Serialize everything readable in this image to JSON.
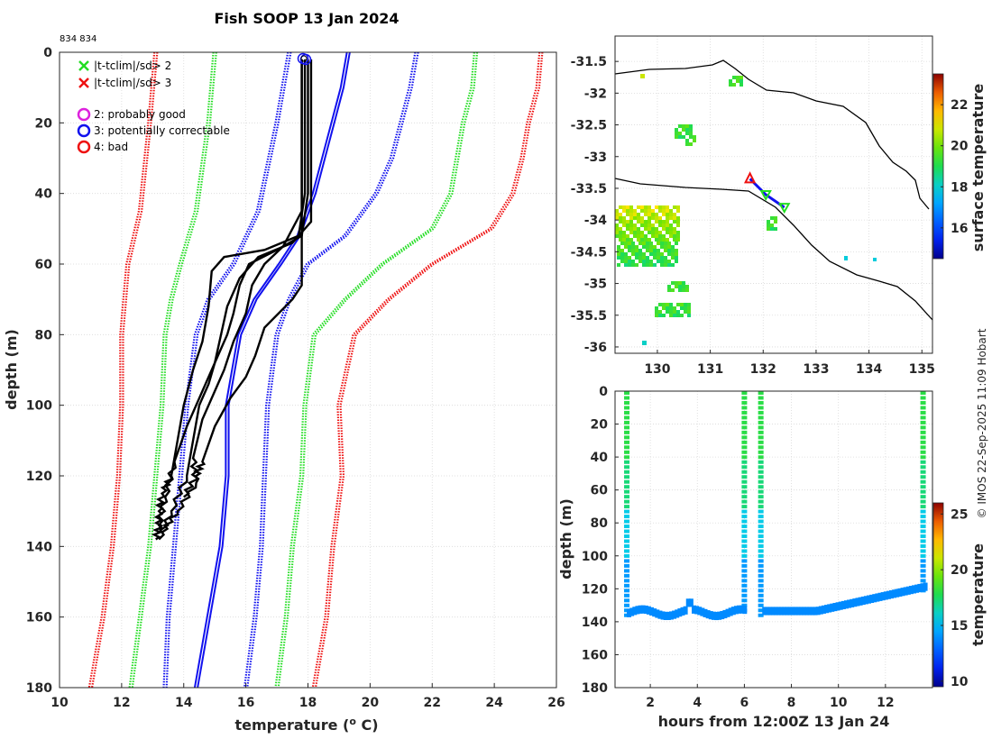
{
  "title": "Fish SOOP 13 Jan 2024",
  "sample_ids": "834 834",
  "credit": "© IMOS 22-Sep-2025 11:09 Hobart",
  "legend": {
    "items": [
      {
        "label": "|t-tclim|/sd> 2",
        "symbol": "x",
        "color": "#22dd22"
      },
      {
        "label": "|t-tclim|/sd> 3",
        "symbol": "x",
        "color": "#ee1111"
      },
      {
        "label": "2: probably good",
        "symbol": "o",
        "color": "#dd22dd"
      },
      {
        "label": "3: potentially correctable",
        "symbol": "o",
        "color": "#1111ee"
      },
      {
        "label": "4: bad",
        "symbol": "o",
        "color": "#ee1111"
      }
    ]
  },
  "chart_data": [
    {
      "type": "line",
      "name": "profile",
      "xlabel_main": "temperature (",
      "xlabel_sup": "o",
      "xlabel_tail": " C)",
      "ylabel": "depth (m)",
      "xlim": [
        10,
        26
      ],
      "ylim": [
        0,
        180
      ],
      "xticks": [
        "10",
        "12",
        "14",
        "16",
        "18",
        "20",
        "22",
        "24",
        "26"
      ],
      "yticks": [
        "0",
        "20",
        "40",
        "60",
        "80",
        "100",
        "120",
        "140",
        "160",
        "180"
      ],
      "climatology": [
        {
          "name": "red-left",
          "color": "#ee1111",
          "depth": [
            0,
            20,
            45,
            60,
            80,
            100,
            120,
            140,
            160,
            180
          ],
          "temp": [
            13.1,
            12.9,
            12.6,
            12.2,
            12.0,
            12.0,
            11.9,
            11.7,
            11.4,
            11.0
          ]
        },
        {
          "name": "green-left",
          "color": "#22dd22",
          "depth": [
            0,
            20,
            45,
            60,
            70,
            80,
            100,
            120,
            140,
            160,
            180
          ],
          "temp": [
            15.0,
            14.8,
            14.4,
            13.9,
            13.6,
            13.4,
            13.3,
            13.1,
            12.9,
            12.6,
            12.3
          ]
        },
        {
          "name": "blue-left",
          "color": "#1111ee",
          "depth": [
            0,
            20,
            45,
            60,
            70,
            80,
            100,
            120,
            140,
            160,
            180
          ],
          "temp": [
            17.4,
            17.0,
            16.4,
            15.6,
            14.8,
            14.4,
            14.1,
            13.9,
            13.7,
            13.5,
            13.4
          ]
        },
        {
          "name": "blue-solid-left",
          "color": "#1111ee",
          "solid": true,
          "depth": [
            0,
            10,
            20,
            30,
            40,
            52,
            60,
            70,
            80,
            100,
            120,
            140,
            160,
            180
          ],
          "temp": [
            19.3,
            19.1,
            18.8,
            18.5,
            18.2,
            17.7,
            17.1,
            16.3,
            15.8,
            15.4,
            15.4,
            15.2,
            14.8,
            14.4
          ]
        },
        {
          "name": "blue-right",
          "color": "#1111ee",
          "depth": [
            0,
            10,
            20,
            30,
            40,
            52,
            60,
            70,
            80,
            100,
            120,
            140,
            160,
            180
          ],
          "temp": [
            21.5,
            21.3,
            21.0,
            20.7,
            20.2,
            19.2,
            18.0,
            17.4,
            17.0,
            16.7,
            16.6,
            16.5,
            16.3,
            16.0
          ]
        },
        {
          "name": "green-right",
          "color": "#22dd22",
          "depth": [
            0,
            10,
            20,
            30,
            40,
            50,
            60,
            70,
            80,
            100,
            120,
            140,
            160,
            180
          ],
          "temp": [
            23.4,
            23.3,
            23.0,
            22.8,
            22.6,
            22.0,
            20.4,
            19.2,
            18.2,
            17.9,
            17.8,
            17.5,
            17.3,
            17.0
          ]
        },
        {
          "name": "red-right",
          "color": "#ee1111",
          "depth": [
            0,
            10,
            20,
            30,
            40,
            50,
            60,
            70,
            80,
            100,
            120,
            140,
            160,
            180
          ],
          "temp": [
            25.5,
            25.4,
            25.1,
            24.9,
            24.6,
            23.9,
            22.0,
            20.6,
            19.5,
            19.0,
            19.1,
            18.8,
            18.6,
            18.2
          ]
        }
      ],
      "profiles": [
        {
          "depth": [
            2,
            40,
            52,
            56,
            58,
            62,
            72,
            82,
            90,
            100,
            110,
            120,
            125,
            130,
            135
          ],
          "temp": [
            17.9,
            17.9,
            17.7,
            16.6,
            15.3,
            14.9,
            14.8,
            14.6,
            14.3,
            14.0,
            13.8,
            13.6,
            13.3,
            13.2,
            13.2
          ]
        },
        {
          "depth": [
            2,
            40,
            52,
            56,
            60,
            66,
            74,
            80,
            88,
            96,
            106,
            116,
            126,
            134,
            138
          ],
          "temp": [
            18.0,
            18.0,
            17.8,
            17.0,
            16.1,
            15.8,
            15.6,
            15.4,
            15.0,
            14.6,
            14.1,
            13.7,
            13.4,
            13.2,
            13.1
          ]
        },
        {
          "depth": [
            2,
            48,
            54,
            58,
            64,
            72,
            80,
            88,
            94,
            100,
            110,
            120,
            130,
            138
          ],
          "temp": [
            18.1,
            18.1,
            17.5,
            16.4,
            15.8,
            15.4,
            15.2,
            15.0,
            14.8,
            14.5,
            14.3,
            14.1,
            13.6,
            13.2
          ]
        },
        {
          "depth": [
            2,
            45,
            55,
            60,
            66,
            74,
            82,
            90,
            96,
            104,
            115,
            122,
            130,
            136
          ],
          "temp": [
            17.8,
            17.8,
            17.2,
            16.6,
            16.2,
            16.0,
            15.6,
            15.3,
            15.0,
            14.6,
            14.3,
            14.4,
            13.8,
            13.3
          ]
        },
        {
          "depth": [
            2,
            50,
            60,
            66,
            70,
            78,
            86,
            92,
            98,
            106,
            116,
            120,
            126
          ],
          "temp": [
            17.8,
            17.8,
            17.8,
            17.8,
            17.5,
            16.6,
            16.3,
            16.0,
            15.5,
            15.0,
            14.6,
            14.4,
            14.0
          ]
        }
      ]
    },
    {
      "type": "heatmap",
      "name": "map",
      "xlim": [
        129.2,
        135.2
      ],
      "ylim": [
        -36.1,
        -31.1
      ],
      "xticks": [
        "130",
        "131",
        "132",
        "133",
        "134",
        "135"
      ],
      "yticks": [
        "-31.5",
        "-32",
        "-32.5",
        "-33",
        "-33.5",
        "-34",
        "-34.5",
        "-35",
        "-35.5",
        "-36"
      ],
      "colorbar": {
        "label": "surface temperature",
        "ticks": [
          "16",
          "18",
          "20",
          "22"
        ],
        "range": [
          14.5,
          23.5
        ]
      },
      "track": {
        "lon": [
          131.75,
          132.05,
          132.4
        ],
        "lat": [
          -33.35,
          -33.6,
          -33.8
        ]
      }
    },
    {
      "type": "scatter",
      "name": "time-depth",
      "xlabel": "hours from 12:00Z 13 Jan 24",
      "ylabel": "depth (m)",
      "xlim": [
        0.5,
        14
      ],
      "ylim": [
        0,
        180
      ],
      "xticks": [
        "2",
        "4",
        "6",
        "8",
        "10",
        "12"
      ],
      "yticks": [
        "0",
        "20",
        "40",
        "60",
        "80",
        "100",
        "120",
        "140",
        "160",
        "180"
      ],
      "colorbar": {
        "label": "temperature",
        "ticks": [
          "10",
          "15",
          "20",
          "25"
        ],
        "range": [
          9.5,
          26
        ]
      },
      "casts": [
        {
          "hour": 1.0,
          "bottom": 135
        },
        {
          "hour": 6.0,
          "bottom": 133
        },
        {
          "hour": 6.7,
          "bottom": 135
        },
        {
          "hour": 13.6,
          "bottom": 120
        }
      ]
    }
  ]
}
